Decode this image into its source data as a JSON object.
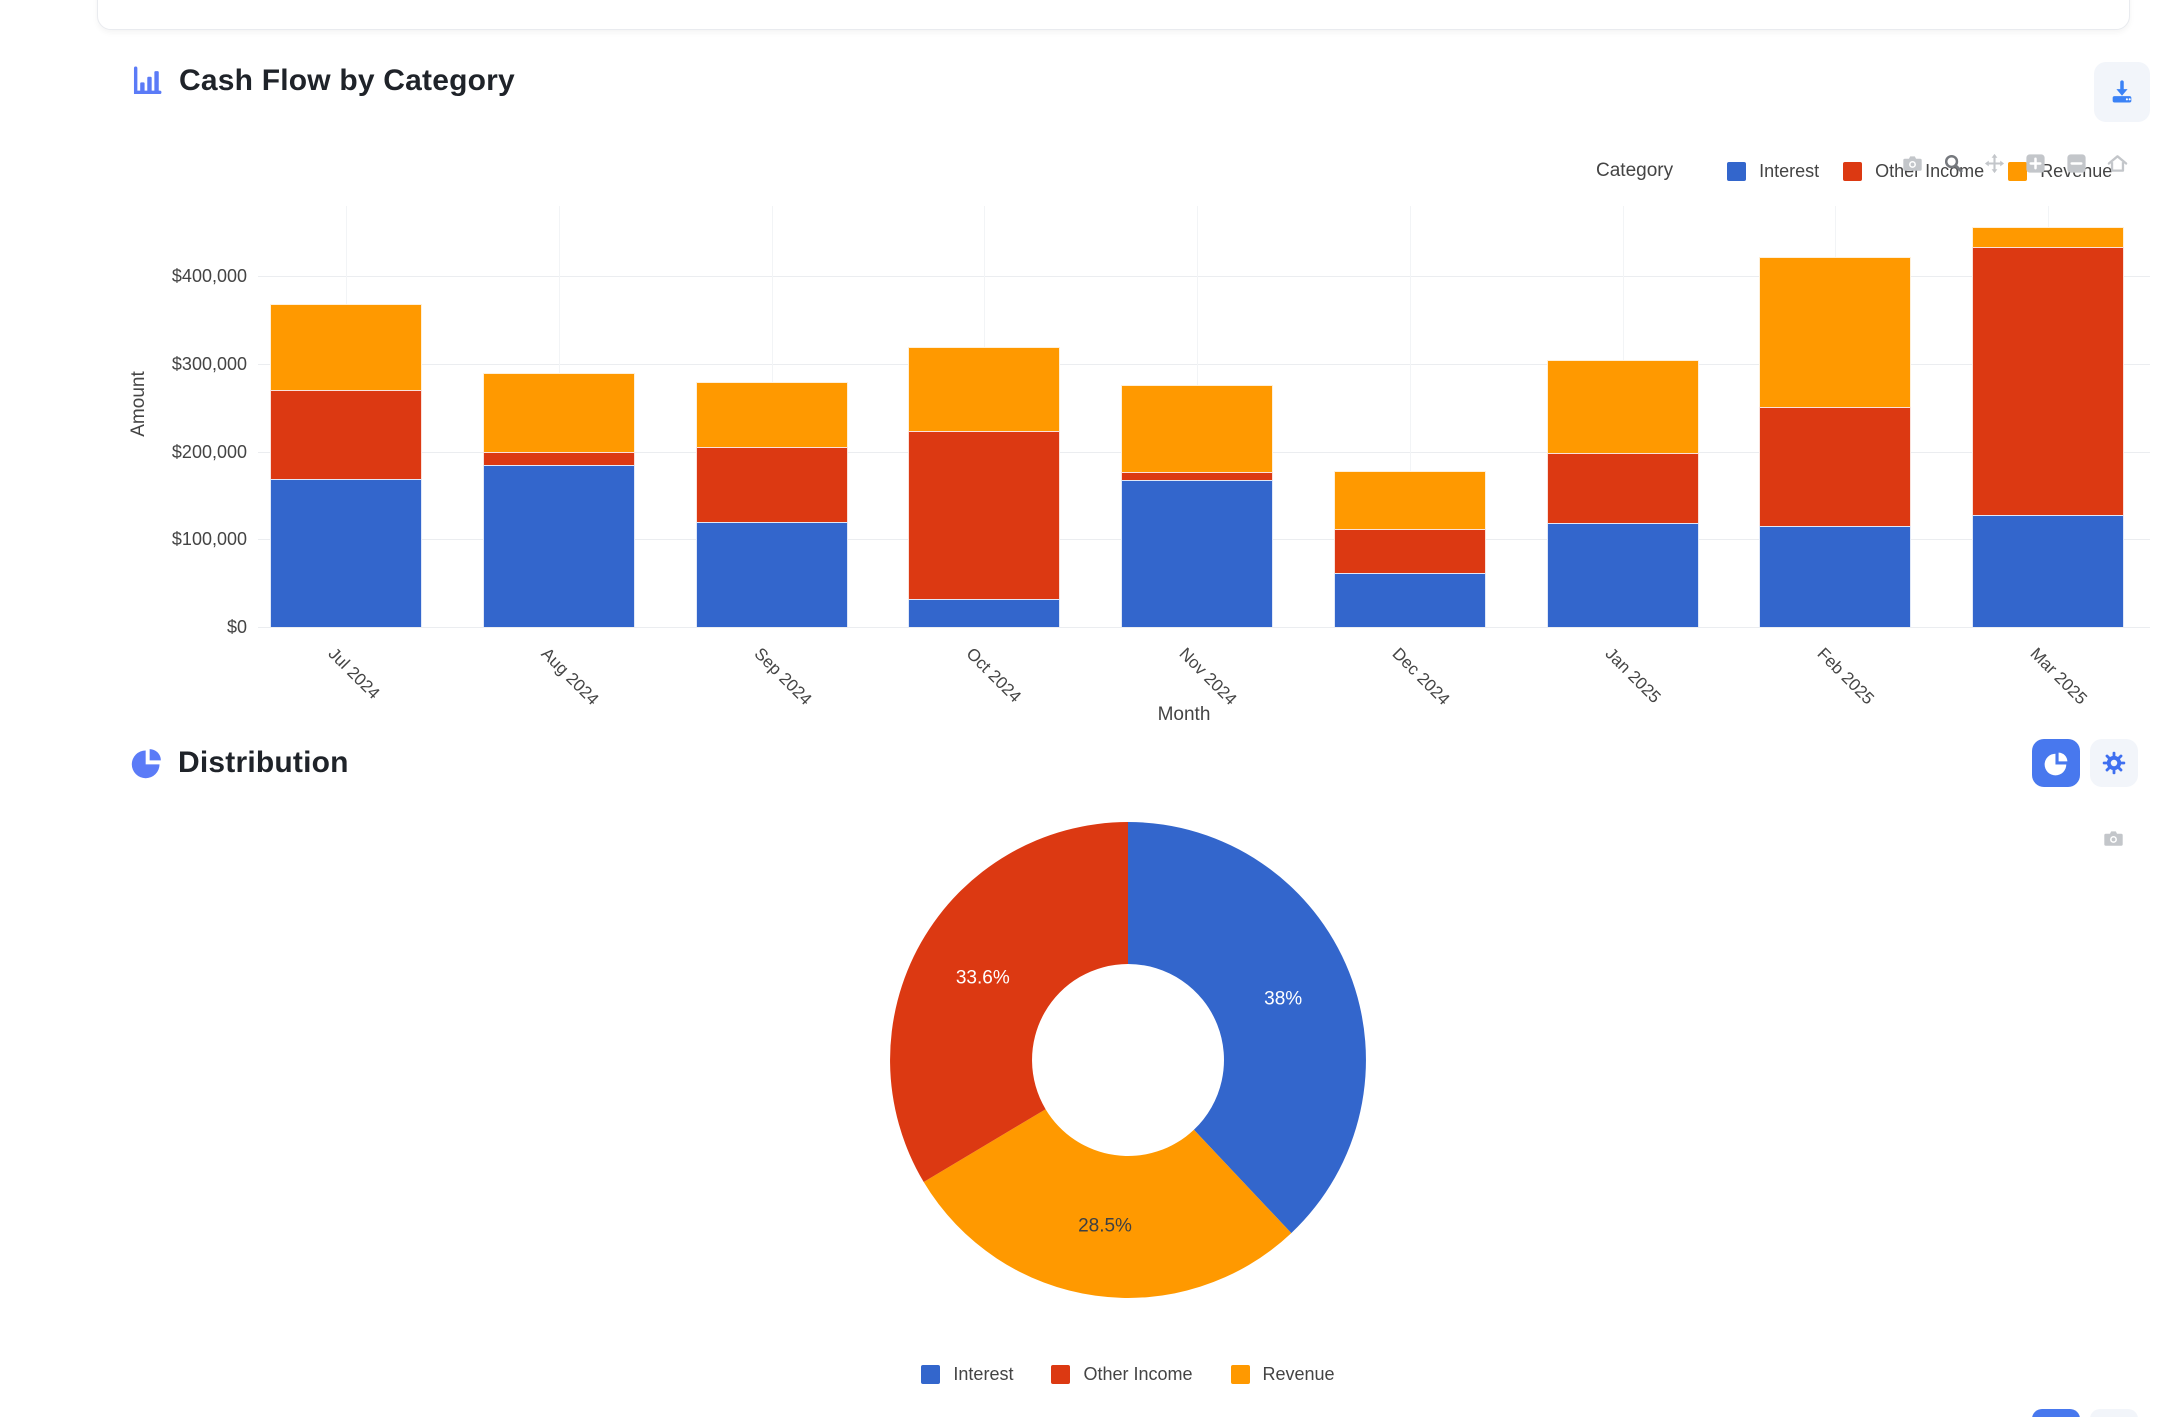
{
  "colors": {
    "interest_blue": "#3366CC",
    "other_income_red": "#DC3912",
    "revenue_orange": "#FF9900",
    "accent_blue": "#4878ee",
    "header_icon_blue": "#5b7bf7",
    "button_bg": "#f2f5fa",
    "modebar_gray": "#c3c6ca",
    "modebar_dark": "#75787d",
    "grid": "#ebedf0",
    "tick_text": "#444444"
  },
  "cash_flow_section": {
    "title": "Cash Flow by Category",
    "header_icon": "bar-chart-icon",
    "download_button_icon": "download-icon",
    "legend_title": "Category",
    "modebar_icons": [
      "camera",
      "zoom",
      "pan",
      "zoom-in",
      "zoom-out",
      "home"
    ]
  },
  "distribution_section": {
    "title": "Distribution",
    "header_icon": "pie-icon",
    "view_button_icon": "pie-icon",
    "settings_button_icon": "gear-icon",
    "modebar_icons": [
      "camera"
    ]
  },
  "chart_data": [
    {
      "type": "bar",
      "stacked": true,
      "title": "Cash Flow by Category",
      "xlabel": "Month",
      "ylabel": "Amount",
      "categories": [
        "Jul 2024",
        "Aug 2024",
        "Sep 2024",
        "Oct 2024",
        "Nov 2024",
        "Dec 2024",
        "Jan 2025",
        "Feb 2025",
        "Mar 2025"
      ],
      "series": [
        {
          "name": "Interest",
          "color": "#3366CC",
          "values": [
            169000,
            185000,
            120000,
            32000,
            168000,
            62000,
            119000,
            115000,
            128000
          ]
        },
        {
          "name": "Other Income",
          "color": "#DC3912",
          "values": [
            101000,
            15000,
            85000,
            191000,
            9000,
            50000,
            79000,
            136000,
            305000
          ]
        },
        {
          "name": "Revenue",
          "color": "#FF9900",
          "values": [
            98000,
            90000,
            74000,
            96000,
            99000,
            66000,
            106000,
            171000,
            23000
          ]
        }
      ],
      "y_ticks": {
        "values": [
          0,
          100000,
          200000,
          300000,
          400000
        ],
        "labels": [
          "$0",
          "$100,000",
          "$200,000",
          "$300,000",
          "$400,000"
        ]
      },
      "ylim": [
        0,
        481000
      ],
      "grid": true,
      "legend_title": "Category",
      "legend_position": "top-right"
    },
    {
      "type": "pie",
      "hole": 0.4,
      "title": "Distribution",
      "labels": [
        "Interest",
        "Other Income",
        "Revenue"
      ],
      "values_pct": [
        38.0,
        33.6,
        28.5
      ],
      "colors": [
        "#3366CC",
        "#DC3912",
        "#FF9900"
      ],
      "slices_clockwise": [
        {
          "label": "Interest",
          "pct": 38.0,
          "color": "#3366CC",
          "text": "38%",
          "text_color": "#ffffff"
        },
        {
          "label": "Revenue",
          "pct": 28.5,
          "color": "#FF9900",
          "text": "28.5%",
          "text_color": "#3d4043"
        },
        {
          "label": "Other Income",
          "pct": 33.6,
          "color": "#DC3912",
          "text": "33.6%",
          "text_color": "#ffffff"
        }
      ],
      "legend_position": "bottom"
    }
  ]
}
